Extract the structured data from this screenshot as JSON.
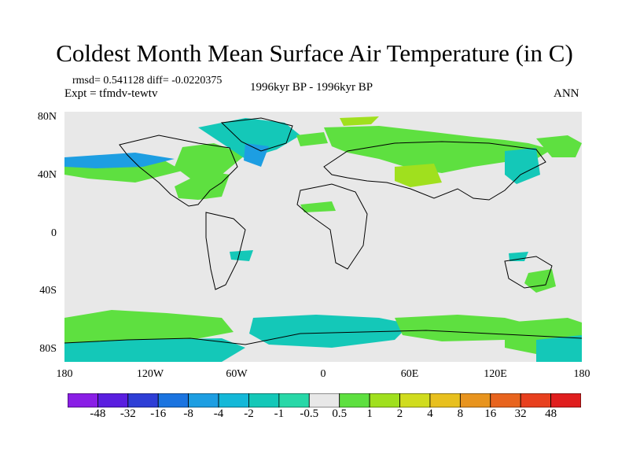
{
  "header": {
    "title": "Coldest Month Mean Surface Air Temperature (in C)",
    "stats": "rmsd= 0.541128 diff= -0.0220375",
    "expt": "Expt = tfmdv-tewtv",
    "period": "1996kyr BP - 1996kyr BP",
    "season": "ANN"
  },
  "axes": {
    "y_ticks": [
      "80N",
      "40N",
      "0",
      "40S",
      "80S"
    ],
    "x_ticks": [
      "180",
      "120W",
      "60W",
      "0",
      "60E",
      "120E",
      "180"
    ]
  },
  "colorbar": {
    "labels": [
      "-48",
      "-32",
      "-16",
      "-8",
      "-4",
      "-2",
      "-1",
      "-0.5",
      "0.5",
      "1",
      "2",
      "4",
      "8",
      "16",
      "32",
      "48"
    ],
    "colors": [
      "#8a1ee6",
      "#5a1ee0",
      "#2e3ed6",
      "#1b74e0",
      "#1d9ee2",
      "#14b8d8",
      "#14c8b8",
      "#28d8a8",
      "#e8e8e8",
      "#5ee040",
      "#a0e01e",
      "#d0dc1e",
      "#e8c01e",
      "#e8941e",
      "#e8641e",
      "#e8401e",
      "#e01e1e"
    ]
  },
  "palette": {
    "background": "#e8e8e8",
    "coast": "#000000"
  }
}
